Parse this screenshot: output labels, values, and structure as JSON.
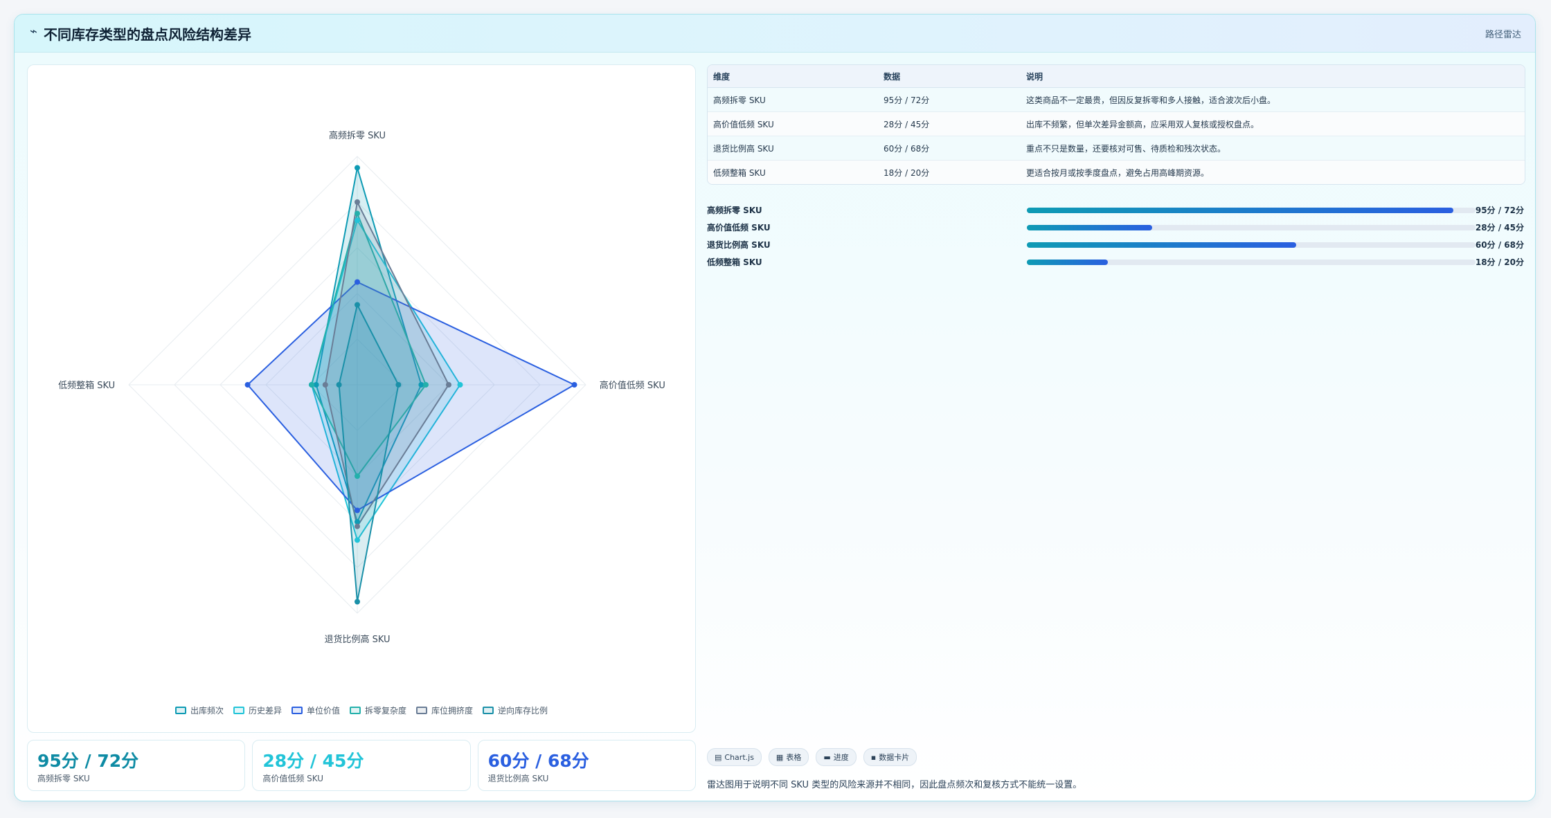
{
  "header": {
    "icon": "trend-icon",
    "title": "不同库存类型的盘点风险结构差异",
    "tag": "路径雷达"
  },
  "colors": {
    "accent_teal": "#0e9bb4",
    "accent_cyan": "#22c4d8",
    "accent_blue": "#2a5fe0"
  },
  "chart_data": {
    "type": "radar",
    "axes": [
      "高频拆零 SKU",
      "高价值低频 SKU",
      "退货比例高 SKU",
      "低频整箱 SKU"
    ],
    "range": [
      0,
      100
    ],
    "grid": true,
    "legend_position": "bottom",
    "series": [
      {
        "name": "出库频次",
        "values": [
          95,
          28,
          60,
          18
        ],
        "color": "#0e9bb4"
      },
      {
        "name": "历史差异",
        "values": [
          72,
          45,
          68,
          20
        ],
        "color": "#22c4d8"
      },
      {
        "name": "单位价值",
        "values": [
          45,
          95,
          55,
          48
        ],
        "color": "#2a5fe0"
      },
      {
        "name": "拆零复杂度",
        "values": [
          75,
          30,
          40,
          20
        ],
        "color": "#23b0ab"
      },
      {
        "name": "库位拥挤度",
        "values": [
          80,
          40,
          62,
          14
        ],
        "color": "#6a7d96"
      },
      {
        "name": "逆向库存比例",
        "values": [
          35,
          18,
          95,
          8
        ],
        "color": "#1a90a8"
      }
    ]
  },
  "stats": [
    {
      "value": "95分 / 72分",
      "label": "高频拆零 SKU",
      "color": "#0e8ba4"
    },
    {
      "value": "28分 / 45分",
      "label": "高价值低频 SKU",
      "color": "#22c4d8"
    },
    {
      "value": "60分 / 68分",
      "label": "退货比例高 SKU",
      "color": "#2a5fe0"
    }
  ],
  "table": {
    "headers": [
      "维度",
      "数据",
      "说明"
    ],
    "rows": [
      [
        "高频拆零 SKU",
        "95分 / 72分",
        "这类商品不一定最贵，但因反复拆零和多人接触，适合波次后小盘。"
      ],
      [
        "高价值低频 SKU",
        "28分 / 45分",
        "出库不频繁，但单次差异金额高，应采用双人复核或授权盘点。"
      ],
      [
        "退货比例高 SKU",
        "60分 / 68分",
        "重点不只是数量，还要核对可售、待质检和残次状态。"
      ],
      [
        "低频整箱 SKU",
        "18分 / 20分",
        "更适合按月或按季度盘点，避免占用高峰期资源。"
      ]
    ]
  },
  "bars": [
    {
      "label": "高频拆零 SKU",
      "fill": 0.95,
      "value": "95分 / 72分"
    },
    {
      "label": "高价值低频 SKU",
      "fill": 0.28,
      "value": "28分 / 45分"
    },
    {
      "label": "退货比例高 SKU",
      "fill": 0.6,
      "value": "60分 / 68分"
    },
    {
      "label": "低频整箱 SKU",
      "fill": 0.18,
      "value": "18分 / 20分"
    }
  ],
  "chips": [
    {
      "icon": "chart-icon",
      "label": "Chart.js"
    },
    {
      "icon": "table-icon",
      "label": "表格"
    },
    {
      "icon": "progress-icon",
      "label": "进度"
    },
    {
      "icon": "card-icon",
      "label": "数据卡片"
    }
  ],
  "note": "雷达图用于说明不同 SKU 类型的风险来源并不相同，因此盘点频次和复核方式不能统一设置。"
}
